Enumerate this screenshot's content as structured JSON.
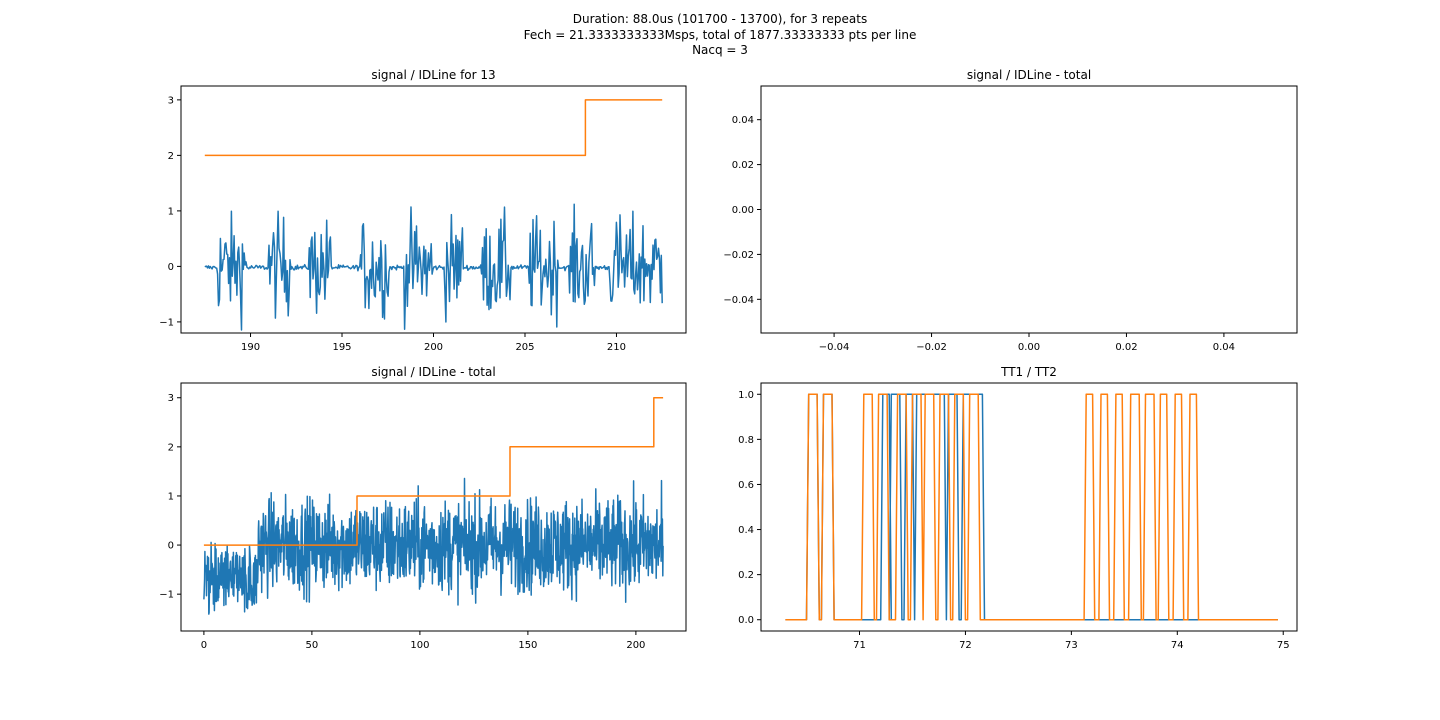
{
  "suptitle": {
    "line1": "Duration: 88.0us (101700 - 13700), for 3 repeats",
    "line2": "Fech = 21.3333333333Msps, total of 1877.33333333 pts per line",
    "line3": "Nacq = 3"
  },
  "colors": {
    "series1": "#1f77b4",
    "series2": "#ff7f0e",
    "axes": "#000000"
  },
  "chart_data": [
    {
      "type": "line",
      "title": "signal / IDLine for 13",
      "xlim": [
        186.2,
        213.8
      ],
      "ylim": [
        -1.2,
        3.25
      ],
      "xticks": [
        190,
        195,
        200,
        205,
        210
      ],
      "yticks": [
        -1,
        0,
        1,
        2,
        3
      ],
      "series": [
        {
          "kind": "noise",
          "x_range": [
            187.5,
            212.5
          ],
          "n": 500,
          "baseline": 0.0,
          "bursts": [
            [
              188.2,
              189.8
            ],
            [
              191.0,
              192.2
            ],
            [
              193.2,
              194.4
            ],
            [
              196.0,
              197.6
            ],
            [
              198.4,
              200.0
            ],
            [
              200.6,
              201.6
            ],
            [
              202.6,
              204.2
            ],
            [
              205.2,
              206.8
            ],
            [
              207.4,
              208.8
            ],
            [
              209.6,
              212.5
            ]
          ],
          "amplitude": 0.75
        },
        {
          "kind": "step",
          "x": [
            187.5,
            208.3,
            208.3,
            212.5
          ],
          "y": [
            2,
            2,
            3,
            3
          ]
        }
      ]
    },
    {
      "type": "line",
      "title": "signal / IDLine - total",
      "xlim": [
        -0.055,
        0.055
      ],
      "ylim": [
        -0.055,
        0.055
      ],
      "xticks": [
        -0.04,
        -0.02,
        0.0,
        0.02,
        0.04
      ],
      "yticks": [
        -0.04,
        -0.02,
        0.0,
        0.02,
        0.04
      ],
      "xticklabels": [
        "−0.04",
        "−0.02",
        "0.00",
        "0.02",
        "0.04"
      ],
      "yticklabels": [
        "−0.04",
        "−0.02",
        "0.00",
        "0.02",
        "0.04"
      ],
      "series": []
    },
    {
      "type": "line",
      "title": "signal / IDLine - total",
      "xlim": [
        -10.6,
        223.2
      ],
      "ylim": [
        -1.75,
        3.3
      ],
      "xticks": [
        0,
        50,
        100,
        150,
        200
      ],
      "yticks": [
        -1,
        0,
        1,
        2,
        3
      ],
      "series": [
        {
          "kind": "noise",
          "x_range": [
            0,
            212.6
          ],
          "n": 1400,
          "baseline": 0.0,
          "bursts": [
            [
              0,
              212.6
            ]
          ],
          "amplitude": 0.8
        },
        {
          "kind": "step",
          "x": [
            0,
            70.9,
            70.9,
            141.7,
            141.7,
            208.3,
            208.3,
            212.6
          ],
          "y": [
            0,
            0,
            1,
            1,
            2,
            2,
            3,
            3
          ]
        }
      ]
    },
    {
      "type": "line",
      "title": "TT1 / TT2",
      "xlim": [
        70.07,
        75.13
      ],
      "ylim": [
        -0.05,
        1.05
      ],
      "xticks": [
        71,
        72,
        73,
        74,
        75
      ],
      "yticks": [
        0.0,
        0.2,
        0.4,
        0.6,
        0.8,
        1.0
      ],
      "yticklabels": [
        "0.0",
        "0.2",
        "0.4",
        "0.6",
        "0.8",
        "1.0"
      ],
      "series": [
        {
          "name": "TT1",
          "kind": "pulses",
          "x_range": [
            70.3,
            74.95
          ],
          "pulses": [
            [
              70.52,
              70.6
            ],
            [
              70.66,
              70.74
            ],
            [
              71.22,
              71.28
            ],
            [
              71.3,
              71.38
            ],
            [
              71.44,
              71.5
            ],
            [
              71.54,
              71.8
            ],
            [
              71.84,
              71.92
            ],
            [
              71.98,
              72.16
            ]
          ]
        },
        {
          "name": "TT2",
          "kind": "pulses",
          "x_range": [
            70.3,
            74.95
          ],
          "pulses": [
            [
              70.52,
              70.6
            ],
            [
              70.66,
              70.74
            ],
            [
              71.04,
              71.12
            ],
            [
              71.18,
              71.26
            ],
            [
              71.36,
              71.44
            ],
            [
              71.5,
              71.58
            ],
            [
              71.62,
              71.7
            ],
            [
              71.76,
              71.84
            ],
            [
              71.9,
              71.98
            ],
            [
              72.04,
              72.12
            ],
            [
              73.14,
              73.2
            ],
            [
              73.28,
              73.34
            ],
            [
              73.42,
              73.48
            ],
            [
              73.56,
              73.64
            ],
            [
              73.7,
              73.78
            ],
            [
              73.84,
              73.9
            ],
            [
              73.98,
              74.04
            ],
            [
              74.12,
              74.18
            ]
          ]
        }
      ]
    }
  ]
}
